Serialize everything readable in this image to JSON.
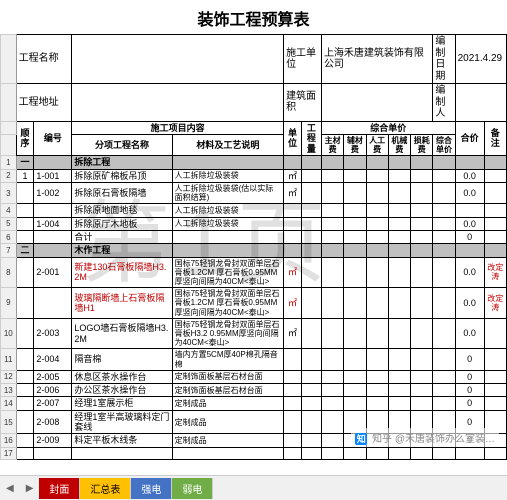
{
  "title": "装饰工程预算表",
  "info": {
    "proj_name_label": "工程名称",
    "proj_addr_label": "工程地址",
    "builder_label": "施工单位",
    "builder_value": "上海禾唐建筑装饰有限公司",
    "date_label": "编制日期",
    "date_value": "2021.4.29",
    "area_label": "建筑面积",
    "author_label": "编 制 人"
  },
  "head": {
    "seq": "顺序",
    "code": "编号",
    "content_group": "施工项目内容",
    "sub_name": "分项工程名称",
    "sub_desc": "材料及工艺说明",
    "unit": "单位",
    "qty": "工程量",
    "price_group": "综合单价",
    "p_main": "主材费",
    "p_aux": "辅材费",
    "p_lab": "人工费",
    "p_mach": "机械费",
    "p_loss": "损耗费",
    "p_sum": "综合单价",
    "total": "合价",
    "remark": "备注"
  },
  "rows": [
    {
      "n": "1",
      "seq": "一",
      "section": true,
      "name": "拆除工程"
    },
    {
      "n": "2",
      "seq": "1",
      "code": "1-001",
      "name": "拆除原矿棉板吊顶",
      "desc": "人工拆除垃圾装袋",
      "unit": "㎡",
      "total": "0.0"
    },
    {
      "n": "3",
      "seq": "",
      "code": "1-002",
      "name": "拆除原石膏板隔墙",
      "desc": "人工拆除垃圾装袋(估以实际面积结算)",
      "unit": "㎡",
      "total": "0.0"
    },
    {
      "n": "4",
      "seq": "",
      "code": "",
      "name": "拆除原地面地毯",
      "desc": "人工拆除垃圾装袋"
    },
    {
      "n": "5",
      "seq": "",
      "code": "1-004",
      "name": "拆除原厅木地板",
      "desc": "人工拆除垃圾装袋",
      "total": "0.0"
    },
    {
      "n": "6",
      "seq": "",
      "code": "",
      "name": "合计",
      "total": "0"
    },
    {
      "n": "7",
      "seq": "二",
      "section": true,
      "name": "木作工程"
    },
    {
      "n": "8",
      "seq": "",
      "code": "2-001",
      "name": "新建130石膏板隔墙H3.2M",
      "red": true,
      "desc": "国标75轻钢龙骨封双面单层石膏板1.2CM 厚石膏板0.95MM厚竖向间隔为40CM<泰山>",
      "unit": "㎡",
      "total": "0.0",
      "remark": "改定涛"
    },
    {
      "n": "9",
      "seq": "",
      "code": "",
      "name": "玻璃隔断墙上石膏板隔墙H1",
      "red": true,
      "desc": "国标75轻钢龙骨封双面单层石膏板1.2CM 厚石膏板0.95MM厚竖向间隔为40CM<泰山>",
      "unit": "㎡",
      "total": "0.0",
      "remark": "改定涛"
    },
    {
      "n": "10",
      "seq": "",
      "code": "2-003",
      "name": "LOGO墙石膏板隔墙H3.2M",
      "desc": "国标75轻钢龙骨封双面单层石膏板H3.2 0.95MM厚竖向间隔为40CM<泰山>",
      "unit": "㎡",
      "total": "0.0"
    },
    {
      "n": "11",
      "seq": "",
      "code": "2-004",
      "name": "隔音棉",
      "desc": "墙内方置5CM厚40P棉孔隔音棉",
      "total": "0"
    },
    {
      "n": "12",
      "seq": "",
      "code": "2-005",
      "name": "休息区茶水操作台",
      "desc": "定制饰面板基层石材台面",
      "total": "0"
    },
    {
      "n": "13",
      "seq": "",
      "code": "2-006",
      "name": "办公区茶水操作台",
      "desc": "定制饰面板基层石材台面",
      "total": "0"
    },
    {
      "n": "14",
      "seq": "",
      "code": "2-007",
      "name": "经理1室展示柜",
      "desc": "定制成品",
      "total": "0"
    },
    {
      "n": "15",
      "seq": "",
      "code": "2-008",
      "name": "经理1室半高玻璃料定门套线",
      "desc": "定制成品",
      "total": "0"
    },
    {
      "n": "16",
      "seq": "",
      "code": "2-009",
      "name": "料定平板木线条",
      "desc": "定制成品",
      "total": "0"
    },
    {
      "n": "17",
      "seq": "",
      "code": "",
      "name": "",
      "desc": "",
      "total": ""
    }
  ],
  "watermark": "第1页",
  "tabs": {
    "nav_l": "◀",
    "nav_r": "▶",
    "cover": "封面",
    "sum": "汇总表",
    "elec": "强电",
    "weak": "弱电"
  },
  "attribution": "知乎 @禾唐装饰办么室装…"
}
